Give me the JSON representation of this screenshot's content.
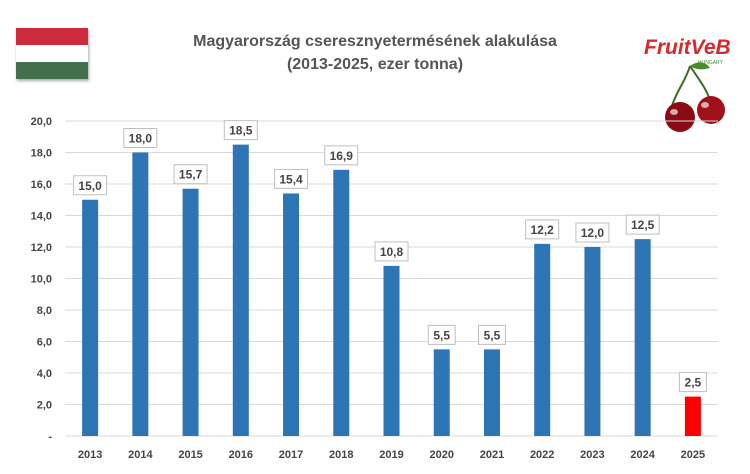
{
  "flag": {
    "stripes": [
      "#cd2a3e",
      "#ffffff",
      "#436f4d"
    ]
  },
  "logo": {
    "text": "FruitVeB",
    "subtext": "HUNGARY",
    "icon": "cherries-icon"
  },
  "colors": {
    "bar": "#2e75b6",
    "highlight": "#ff0000",
    "axis_text": "#444444",
    "grid": "#d9d9d9"
  },
  "chart_data": {
    "type": "bar",
    "title": "Magyarország cseresznyetermésének alakulása",
    "subtitle": "(2013-2025, ezer tonna)",
    "categories": [
      "2013",
      "2014",
      "2015",
      "2016",
      "2017",
      "2018",
      "2019",
      "2020",
      "2021",
      "2022",
      "2023",
      "2024",
      "2025"
    ],
    "values": [
      15.0,
      18.0,
      15.7,
      18.5,
      15.4,
      16.9,
      10.8,
      5.5,
      5.5,
      12.2,
      12.0,
      12.5,
      2.5
    ],
    "data_labels": [
      "15,0",
      "18,0",
      "15,7",
      "18,5",
      "15,4",
      "16,9",
      "10,8",
      "5,5",
      "5,5",
      "12,2",
      "12,0",
      "12,5",
      "2,5"
    ],
    "highlight_index": 12,
    "yticks": [
      0,
      2,
      4,
      6,
      8,
      10,
      12,
      14,
      16,
      18,
      20
    ],
    "ytick_labels": [
      "-",
      "2,0",
      "4,0",
      "6,0",
      "8,0",
      "10,0",
      "12,0",
      "14,0",
      "16,0",
      "18,0",
      "20,0"
    ],
    "ylim": [
      0,
      20
    ],
    "grid": true,
    "legend": false
  }
}
